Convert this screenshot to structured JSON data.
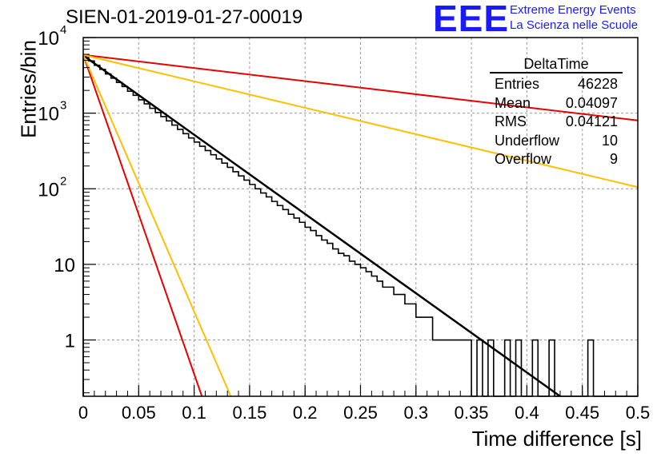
{
  "title": "SIEN-01-2019-01-27-00019",
  "logo": {
    "mark": "EEE",
    "line1": "Extreme Energy Events",
    "line2": "La Scienza nelle Scuole",
    "color": "#1a1aff"
  },
  "stats_box": {
    "title": "DeltaTime",
    "rows": [
      {
        "label": "Entries",
        "value": "46228"
      },
      {
        "label": "Mean",
        "value": "0.04097"
      },
      {
        "label": "RMS",
        "value": "0.04121"
      },
      {
        "label": "Underflow",
        "value": "10"
      },
      {
        "label": "Overflow",
        "value": "9"
      }
    ]
  },
  "chart_data": {
    "type": "histogram",
    "title": "SIEN-01-2019-01-27-00019",
    "xlabel": "Time difference [s]",
    "ylabel": "Entries/bin",
    "xlim": [
      0,
      0.5
    ],
    "ylim": [
      0.18,
      10000
    ],
    "yscale": "log",
    "grid": true,
    "x_ticks": [
      "0",
      "0.05",
      "0.1",
      "0.15",
      "0.2",
      "0.25",
      "0.3",
      "0.35",
      "0.4",
      "0.45",
      "0.5"
    ],
    "y_tick_labels": [
      "1",
      "10",
      "10^2",
      "10^3",
      "10^4"
    ],
    "bin_width": 0.005,
    "histogram": {
      "x_start": 0.0,
      "counts": [
        5600,
        4900,
        4300,
        3800,
        3300,
        2900,
        2550,
        2250,
        1950,
        1720,
        1500,
        1330,
        1160,
        1020,
        900,
        790,
        695,
        610,
        535,
        470,
        415,
        365,
        320,
        282,
        248,
        218,
        192,
        168,
        148,
        130,
        114,
        100,
        88,
        78,
        68,
        60,
        53,
        46,
        41,
        36,
        31,
        28,
        24,
        21,
        19,
        16,
        14,
        13,
        11,
        10,
        9,
        8,
        7,
        6,
        5,
        5,
        4,
        4,
        3,
        3,
        2,
        2,
        2,
        1,
        1,
        1,
        1,
        1,
        1,
        1,
        0,
        1,
        0,
        1,
        0,
        0,
        1,
        0,
        1,
        0,
        0,
        1,
        0,
        0,
        1,
        0,
        0,
        0,
        0,
        0,
        0,
        1,
        0,
        0,
        0,
        0,
        0,
        0,
        0,
        0
      ]
    },
    "fit_lines": [
      {
        "color": "#000000",
        "from": [
          0,
          5800
        ],
        "to": [
          0.43,
          0.18
        ]
      },
      {
        "color": "#e60000",
        "from": [
          0,
          5900
        ],
        "to": [
          0.5,
          800
        ]
      },
      {
        "color": "#ffbf00",
        "from": [
          0,
          5900
        ],
        "to": [
          0.5,
          105
        ]
      },
      {
        "color": "#e60000",
        "from": [
          0,
          5900
        ],
        "to": [
          0.107,
          0.18
        ]
      },
      {
        "color": "#ffbf00",
        "from": [
          0,
          5900
        ],
        "to": [
          0.133,
          0.18
        ]
      }
    ]
  }
}
